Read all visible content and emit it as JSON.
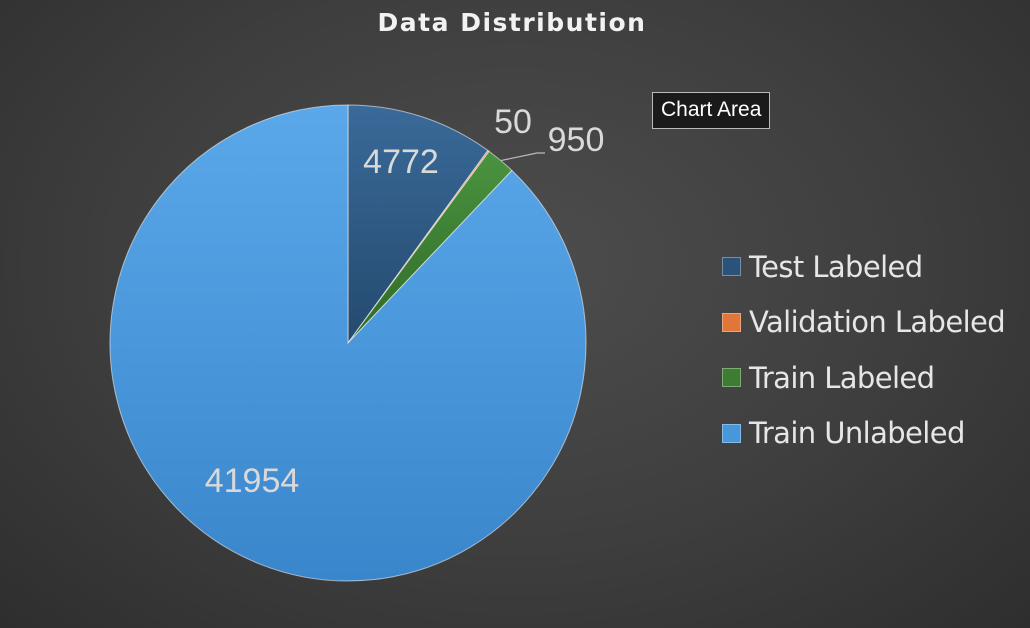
{
  "chart_data": {
    "type": "pie",
    "title": "Data Distribution",
    "categories": [
      "Test Labeled",
      "Validation Labeled",
      "Train Labeled",
      "Train Unlabeled"
    ],
    "values": [
      4772,
      50,
      950,
      41954
    ],
    "colors": [
      "#2b5278",
      "#e0763a",
      "#3c7d32",
      "#4897db"
    ],
    "data_labels": [
      "4772",
      "50",
      "950",
      "41954"
    ],
    "legend_position": "right"
  },
  "tooltip": {
    "text": "Chart Area"
  }
}
